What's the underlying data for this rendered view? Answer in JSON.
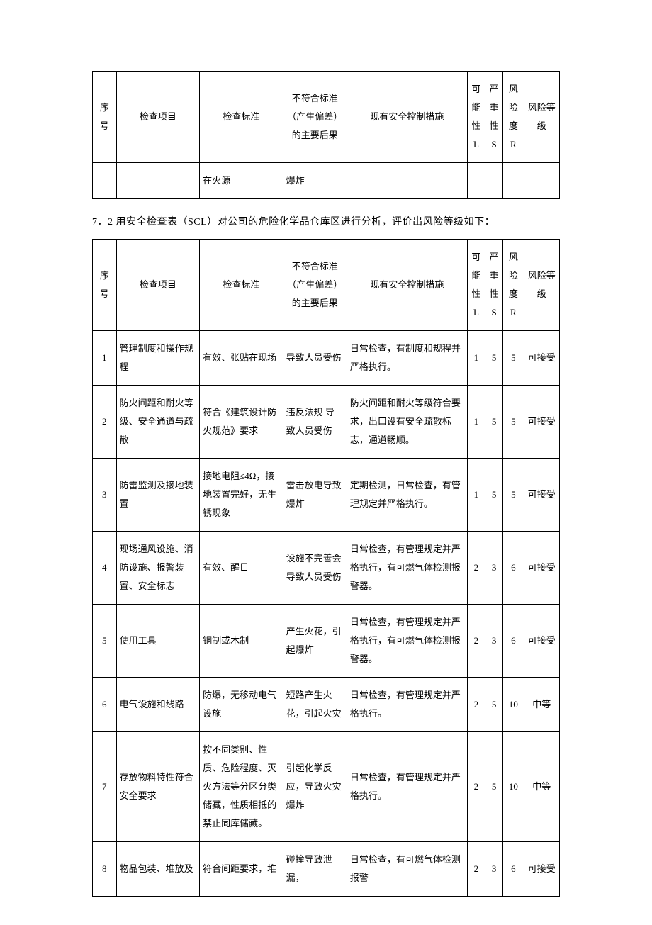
{
  "headers": {
    "seq": "序号",
    "item": "检查项目",
    "std": "检查标准",
    "cons": "不符合标准（产生偏差）的主要后果",
    "ctrl": "现有安全控制措施",
    "l": "可能性 L",
    "s": "严重性 S",
    "r": "风险度 R",
    "lvl": "风险等级"
  },
  "table1_tail": {
    "seq": "",
    "item": "",
    "std": "在火源",
    "cons": "爆炸",
    "ctrl": "",
    "l": "",
    "s": "",
    "r": "",
    "lvl": ""
  },
  "section_text": "7．2 用安全检查表（SCL）对公司的危险化学品仓库区进行分析，评价出风险等级如下：",
  "rows": [
    {
      "seq": "1",
      "item": "管理制度和操作规程",
      "std": "有效、张贴在现场",
      "cons": "导致人员受伤",
      "ctrl": "日常检查，有制度和规程并严格执行。",
      "l": "1",
      "s": "5",
      "r": "5",
      "lvl": "可接受"
    },
    {
      "seq": "2",
      "item": "防火间距和耐火等级、安全通道与疏散",
      "std": "符合《建筑设计防火规范》要求",
      "cons": "违反法规 导致人员受伤",
      "ctrl": "防火间距和耐火等级符合要求，出口设有安全疏散标志，通道畅顺。",
      "l": "1",
      "s": "5",
      "r": "5",
      "lvl": "可接受"
    },
    {
      "seq": "3",
      "item": "防雷监测及接地装置",
      "std": "接地电阻≤4Ω，接地装置完好，无生锈现象",
      "cons": "雷击放电导致爆炸",
      "ctrl": "定期检测，日常检查，有管理规定并严格执行。",
      "l": "1",
      "s": "5",
      "r": "5",
      "lvl": "可接受"
    },
    {
      "seq": "4",
      "item": "现场通风设施、消防设施、报警装置、安全标志",
      "std": "有效、醒目",
      "cons": "设施不完善会导致人员受伤",
      "ctrl": "日常检查，有管理规定并严格执行，有可燃气体检测报警器。",
      "l": "2",
      "s": "3",
      "r": "6",
      "lvl": "可接受"
    },
    {
      "seq": "5",
      "item": "使用工具",
      "std": "铜制或木制",
      "cons": "产生火花，引起爆炸",
      "ctrl": "日常检查，有管理规定并严格执行，有可燃气体检测报警器。",
      "l": "2",
      "s": "3",
      "r": "6",
      "lvl": "可接受"
    },
    {
      "seq": "6",
      "item": "电气设施和线路",
      "std": "防爆，无移动电气设施",
      "cons": "短路产生火花，引起火灾",
      "ctrl": "日常检查，有管理规定并严格执行。",
      "l": "2",
      "s": "5",
      "r": "10",
      "lvl": "中等"
    },
    {
      "seq": "7",
      "item": "存放物料特性符合安全要求",
      "std": "按不同类别、性质、危险程度、灭火方法等分区分类储藏，性质相抵的禁止同库储藏。",
      "cons": "引起化学反应，导致火灾爆炸",
      "ctrl": "日常检查，有管理规定并严格执行。",
      "l": "2",
      "s": "5",
      "r": "10",
      "lvl": "中等"
    },
    {
      "seq": "8",
      "item": "物品包装、堆放及",
      "std": "符合间距要求，堆",
      "cons": "碰撞导致泄漏，",
      "ctrl": "日常检查，有可燃气体检测报警",
      "l": "2",
      "s": "3",
      "r": "6",
      "lvl": "可接受"
    }
  ]
}
